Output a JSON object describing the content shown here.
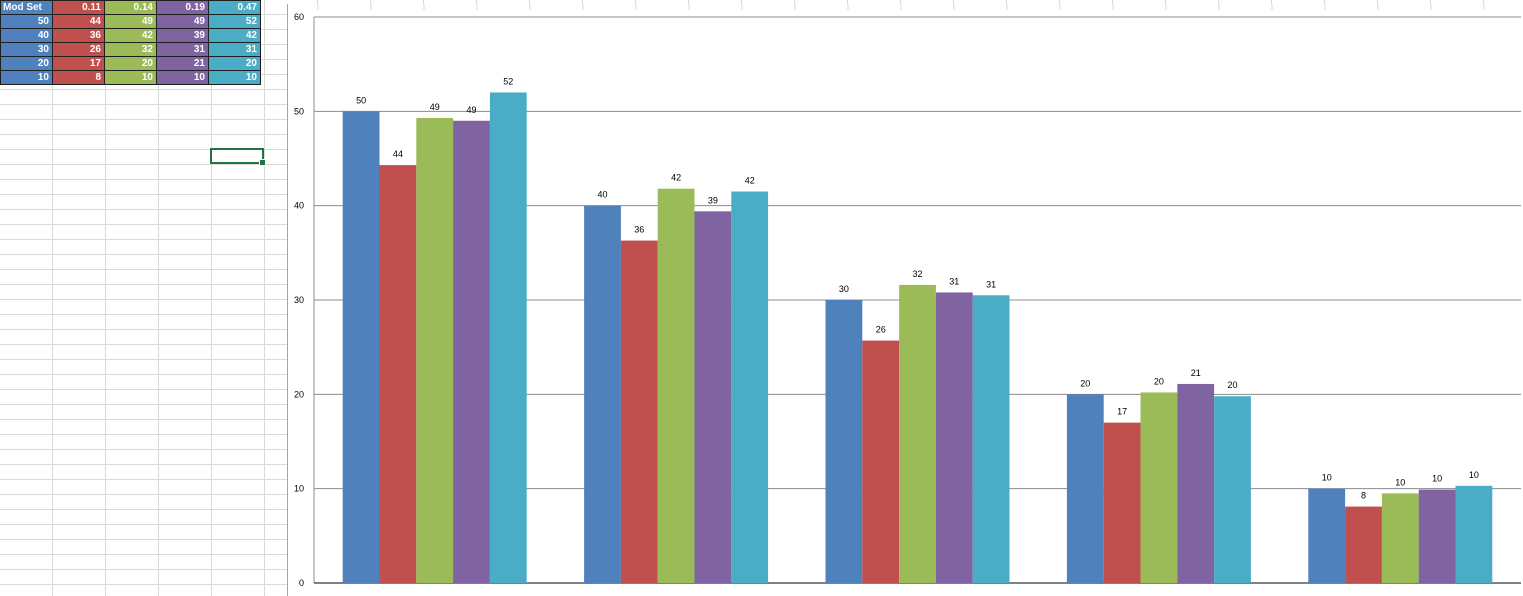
{
  "table": {
    "header": [
      "Mod Set",
      "0.11",
      "0.14",
      "0.19",
      "0.47"
    ],
    "rows": [
      [
        "50",
        "44",
        "49",
        "49",
        "52"
      ],
      [
        "40",
        "36",
        "42",
        "39",
        "42"
      ],
      [
        "30",
        "26",
        "32",
        "31",
        "31"
      ],
      [
        "20",
        "17",
        "20",
        "21",
        "20"
      ],
      [
        "10",
        "8",
        "10",
        "10",
        "10"
      ]
    ]
  },
  "colors": [
    "#4f81bd",
    "#c0504d",
    "#9bbb59",
    "#8064a2",
    "#4bacc6"
  ],
  "chart_data": {
    "type": "bar",
    "categories": [
      "",
      "",
      "",
      "",
      ""
    ],
    "series": [
      {
        "values": [
          50,
          40,
          30,
          20,
          10
        ],
        "labels": [
          "50",
          "40",
          "30",
          "20",
          "10"
        ]
      },
      {
        "values": [
          44.3,
          36.3,
          25.7,
          17,
          8.1
        ],
        "labels": [
          "44",
          "36",
          "26",
          "17",
          "8"
        ]
      },
      {
        "values": [
          49.3,
          41.8,
          31.6,
          20.2,
          9.5
        ],
        "labels": [
          "49",
          "42",
          "32",
          "20",
          "10"
        ]
      },
      {
        "values": [
          49,
          39.4,
          30.8,
          21.1,
          9.9
        ],
        "labels": [
          "49",
          "39",
          "31",
          "21",
          "10"
        ]
      },
      {
        "values": [
          52,
          41.5,
          30.5,
          19.8,
          10.3
        ],
        "labels": [
          "52",
          "42",
          "31",
          "20",
          "10"
        ]
      }
    ],
    "ylim": [
      0,
      60
    ],
    "yticks": [
      "0",
      "10",
      "20",
      "30",
      "40",
      "50",
      "60"
    ],
    "grid": true,
    "legend": "none"
  }
}
